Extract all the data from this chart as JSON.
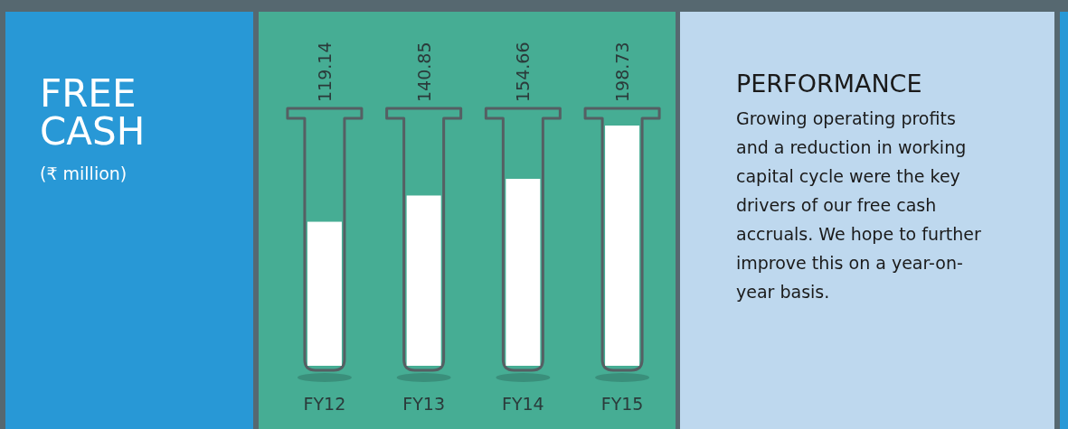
{
  "chart_data": {
    "type": "bar",
    "title": "FREE CASH",
    "subtitle": "(₹ million)",
    "categories": [
      "FY12",
      "FY13",
      "FY14",
      "FY15"
    ],
    "values": [
      119.14,
      140.85,
      154.66,
      198.73
    ],
    "color": "#ffffff",
    "data_labels": true,
    "annotations": [
      "PERFORMANCE",
      "Growing operating profits and a reduction in working capital cycle were the key drivers of our free cash accruals. We hope to further improve this on a year-on-year basis."
    ]
  }
}
